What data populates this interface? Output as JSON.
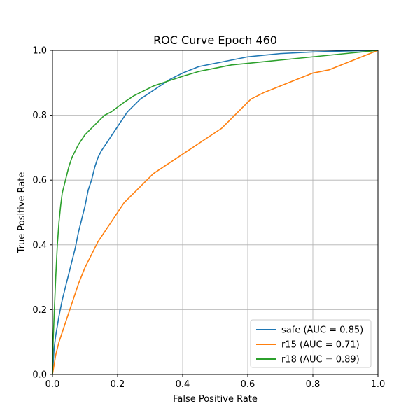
{
  "chart_data": {
    "type": "line",
    "title": "ROC Curve Epoch 460",
    "xlabel": "False Positive Rate",
    "ylabel": "True Positive Rate",
    "xlim": [
      0,
      1
    ],
    "ylim": [
      0,
      1
    ],
    "x_ticks": [
      "0.0",
      "0.2",
      "0.4",
      "0.6",
      "0.8",
      "1.0"
    ],
    "y_ticks": [
      "0.0",
      "0.2",
      "0.4",
      "0.6",
      "0.8",
      "1.0"
    ],
    "grid": true,
    "legend_position": "lower-right",
    "series": [
      {
        "name": "safe (AUC = 0.85)",
        "color": "#1f77b4",
        "x": [
          0.0,
          0.005,
          0.01,
          0.02,
          0.03,
          0.04,
          0.05,
          0.06,
          0.07,
          0.08,
          0.09,
          0.1,
          0.11,
          0.12,
          0.13,
          0.14,
          0.15,
          0.17,
          0.19,
          0.21,
          0.23,
          0.25,
          0.27,
          0.3,
          0.33,
          0.36,
          0.4,
          0.45,
          0.5,
          0.55,
          0.6,
          0.7,
          0.8,
          0.9,
          1.0
        ],
        "y": [
          0.0,
          0.08,
          0.12,
          0.18,
          0.23,
          0.27,
          0.31,
          0.35,
          0.39,
          0.44,
          0.48,
          0.52,
          0.57,
          0.6,
          0.64,
          0.67,
          0.69,
          0.72,
          0.75,
          0.78,
          0.81,
          0.83,
          0.85,
          0.87,
          0.89,
          0.91,
          0.93,
          0.95,
          0.96,
          0.97,
          0.98,
          0.99,
          0.995,
          0.998,
          1.0
        ]
      },
      {
        "name": "r15 (AUC = 0.71)",
        "color": "#ff7f0e",
        "x": [
          0.0,
          0.005,
          0.01,
          0.02,
          0.03,
          0.04,
          0.05,
          0.06,
          0.08,
          0.1,
          0.12,
          0.14,
          0.16,
          0.18,
          0.2,
          0.22,
          0.25,
          0.28,
          0.31,
          0.34,
          0.37,
          0.4,
          0.43,
          0.46,
          0.49,
          0.52,
          0.55,
          0.58,
          0.61,
          0.65,
          0.7,
          0.75,
          0.8,
          0.85,
          0.9,
          0.95,
          1.0
        ],
        "y": [
          0.0,
          0.03,
          0.06,
          0.1,
          0.13,
          0.16,
          0.19,
          0.22,
          0.28,
          0.33,
          0.37,
          0.41,
          0.44,
          0.47,
          0.5,
          0.53,
          0.56,
          0.59,
          0.62,
          0.64,
          0.66,
          0.68,
          0.7,
          0.72,
          0.74,
          0.76,
          0.79,
          0.82,
          0.85,
          0.87,
          0.89,
          0.91,
          0.93,
          0.94,
          0.96,
          0.98,
          1.0
        ]
      },
      {
        "name": "r18 (AUC = 0.89)",
        "color": "#2ca02c",
        "x": [
          0.0,
          0.002,
          0.005,
          0.01,
          0.015,
          0.02,
          0.025,
          0.03,
          0.04,
          0.05,
          0.06,
          0.08,
          0.1,
          0.12,
          0.14,
          0.16,
          0.18,
          0.2,
          0.22,
          0.25,
          0.28,
          0.31,
          0.34,
          0.37,
          0.4,
          0.45,
          0.5,
          0.55,
          0.6,
          0.7,
          0.8,
          0.9,
          1.0
        ],
        "y": [
          0.0,
          0.1,
          0.18,
          0.3,
          0.4,
          0.47,
          0.52,
          0.56,
          0.6,
          0.64,
          0.67,
          0.71,
          0.74,
          0.76,
          0.78,
          0.8,
          0.81,
          0.825,
          0.84,
          0.86,
          0.875,
          0.89,
          0.9,
          0.91,
          0.92,
          0.935,
          0.945,
          0.955,
          0.96,
          0.97,
          0.98,
          0.99,
          1.0
        ]
      }
    ]
  }
}
